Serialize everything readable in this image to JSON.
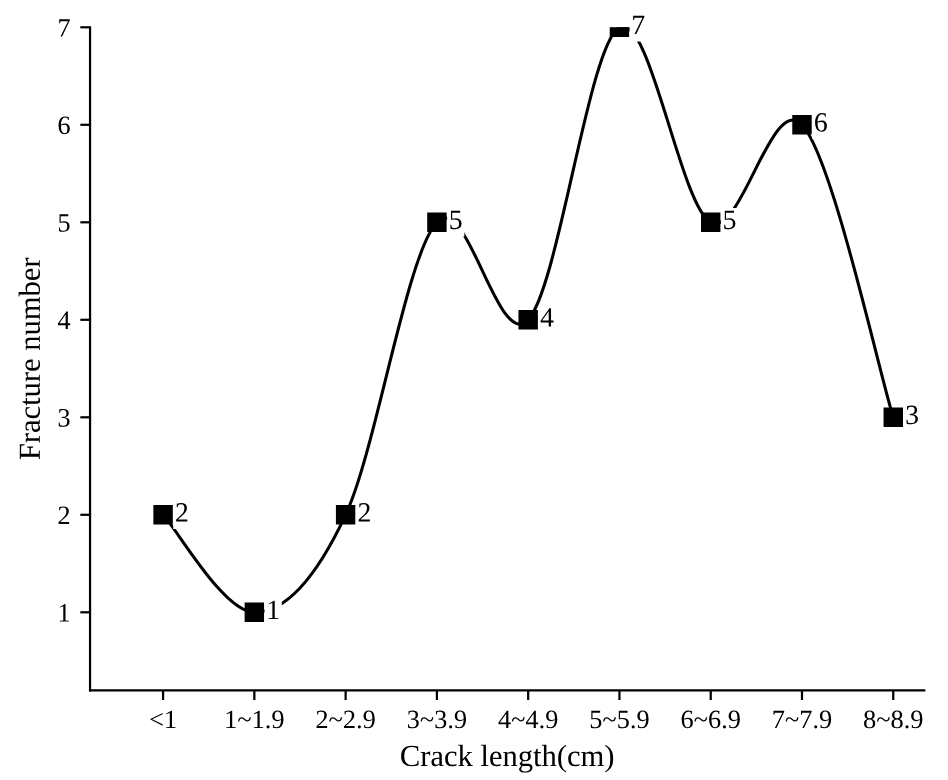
{
  "chart_data": {
    "type": "line",
    "xlabel": "Crack length(cm)",
    "ylabel": "Fracture number",
    "categories": [
      "<1",
      "1~1.9",
      "2~2.9",
      "3~3.9",
      "4~4.9",
      "5~5.9",
      "6~6.9",
      "7~7.9",
      "8~8.9"
    ],
    "series": [
      {
        "color": "#000000",
        "values": [
          2,
          1,
          2,
          5,
          4,
          7,
          5,
          6,
          3
        ]
      }
    ],
    "ylim": [
      0.2,
      7
    ],
    "yticks": [
      1,
      2,
      3,
      4,
      5,
      6,
      7
    ],
    "marker": "square",
    "line_style": "solid",
    "data_labels": true,
    "grid": false
  }
}
